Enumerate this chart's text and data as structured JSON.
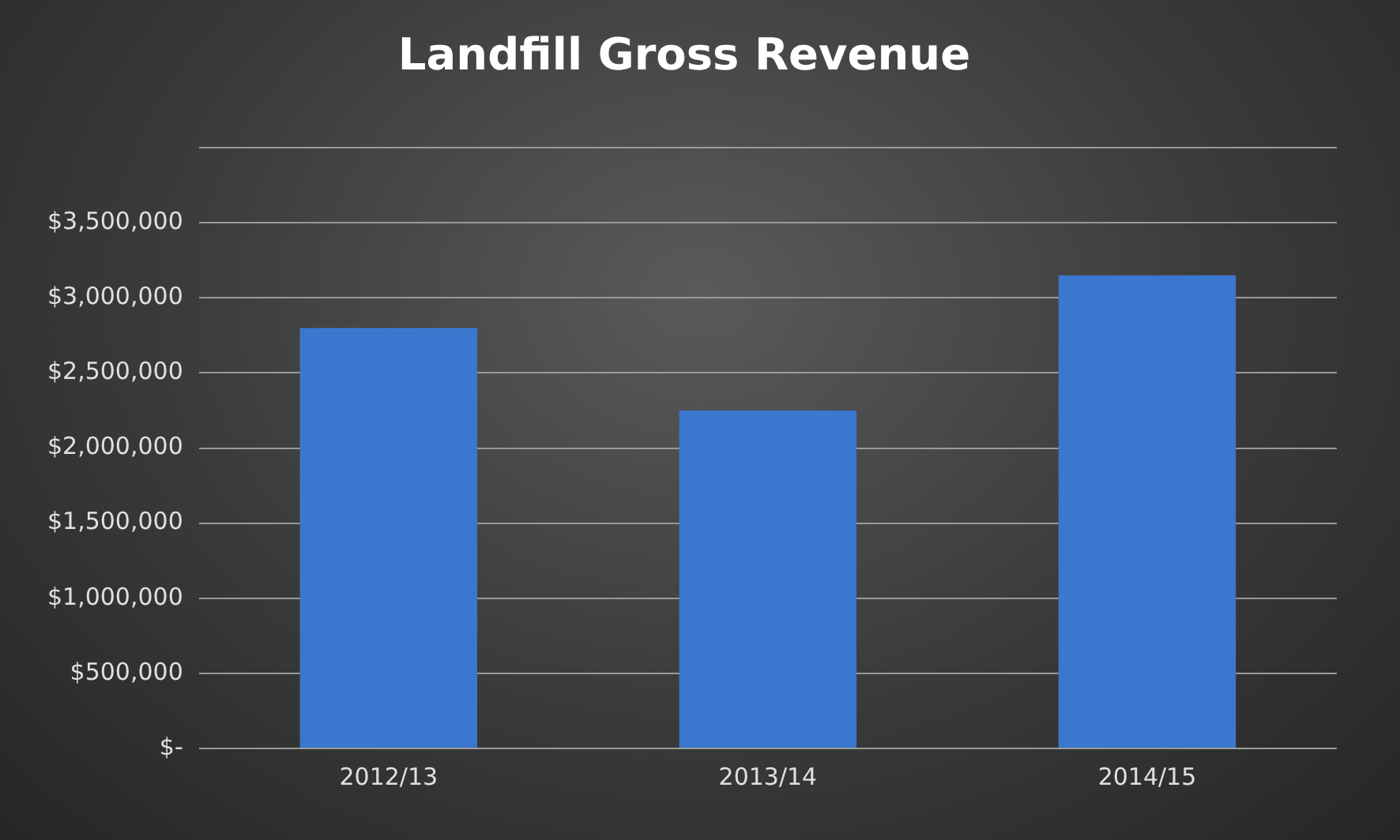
{
  "chart_data": {
    "type": "bar",
    "title": "Landfill Gross Revenue",
    "categories": [
      "2012/13",
      "2013/14",
      "2014/15"
    ],
    "values": [
      2800000,
      2250000,
      3150000
    ],
    "color": "#3a78d0",
    "ylim": [
      0,
      4000000
    ],
    "yticks": [
      {
        "value": 0,
        "label": "$-"
      },
      {
        "value": 500000,
        "label": "$500,000"
      },
      {
        "value": 1000000,
        "label": "$1,000,000"
      },
      {
        "value": 1500000,
        "label": "$1,500,000"
      },
      {
        "value": 2000000,
        "label": "$2,000,000"
      },
      {
        "value": 2500000,
        "label": "$2,500,000"
      },
      {
        "value": 3000000,
        "label": "$3,000,000"
      },
      {
        "value": 3500000,
        "label": "$3,500,000"
      },
      {
        "value": 4000000,
        "label": null
      }
    ],
    "grid": "y",
    "legend": false
  }
}
